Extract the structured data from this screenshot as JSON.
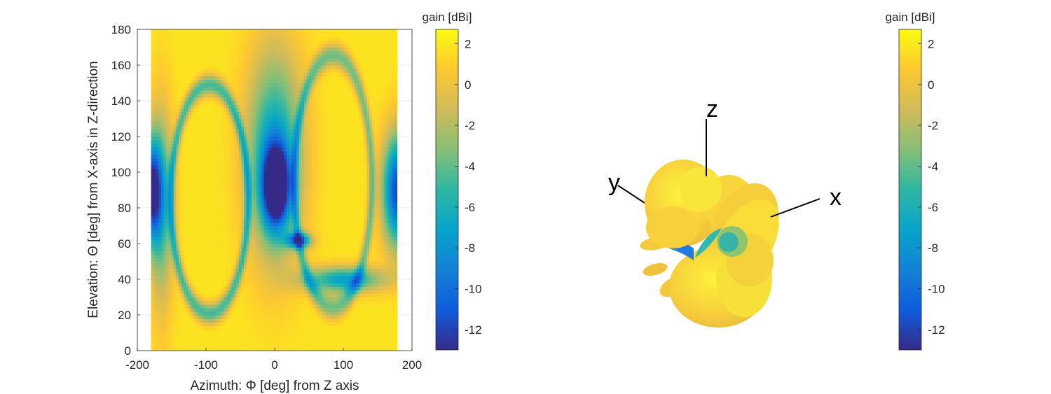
{
  "chart_data": [
    {
      "type": "heatmap",
      "xlabel": "Azimuth: Φ [deg] from Z axis",
      "ylabel": "Elevation: Θ [deg] from X-axis in Z-direction",
      "xlim": [
        -200,
        200
      ],
      "ylim": [
        0,
        180
      ],
      "xticks": [
        -200,
        -100,
        0,
        100,
        200
      ],
      "yticks": [
        0,
        20,
        40,
        60,
        80,
        100,
        120,
        140,
        160,
        180
      ],
      "grid": true,
      "colorbar": {
        "title": "gain [dBi]",
        "ticks": [
          2,
          0,
          -2,
          -4,
          -6,
          -8,
          -10,
          -12
        ],
        "range": [
          -13,
          2.7
        ],
        "colormap": "parula"
      },
      "value_range": [
        -13,
        2.7
      ],
      "description_features": {
        "deep_nulls": [
          {
            "azimuth": 0,
            "elevation": 90,
            "value": -13
          },
          {
            "azimuth": 180,
            "elevation": 90,
            "value": -13
          },
          {
            "azimuth": -180,
            "elevation": 90,
            "value": -13
          }
        ]
      }
    },
    {
      "type": "3d-radiation-pattern",
      "axes_labels": [
        "x",
        "y",
        "z"
      ],
      "colorbar": {
        "title": "gain [dBi]",
        "ticks": [
          2,
          0,
          -2,
          -4,
          -6,
          -8,
          -10,
          -12
        ],
        "range": [
          -13,
          2.7
        ],
        "colormap": "parula"
      }
    }
  ],
  "left_colorbar": {
    "title": "gain [dBi]",
    "tick_labels": [
      "2",
      "0",
      "-2",
      "-4",
      "-6",
      "-8",
      "-10",
      "-12"
    ]
  },
  "right_colorbar": {
    "title": "gain [dBi]",
    "tick_labels": [
      "2",
      "0",
      "-2",
      "-4",
      "-6",
      "-8",
      "-10",
      "-12"
    ]
  },
  "heatmap": {
    "xtick_labels": [
      "-200",
      "-100",
      "0",
      "100",
      "200"
    ],
    "ytick_labels": [
      "0",
      "20",
      "40",
      "60",
      "80",
      "100",
      "120",
      "140",
      "160",
      "180"
    ],
    "xlabel": "Azimuth: Φ [deg] from Z axis",
    "ylabel": "Elevation: Θ [deg] from X-axis in Z-direction"
  },
  "pattern3d": {
    "x_label": "x",
    "y_label": "y",
    "z_label": "z"
  },
  "colors": {
    "parula_stops": [
      "#352a87",
      "#0f5cdd",
      "#1481d6",
      "#06a4ca",
      "#2eb7a4",
      "#87bf77",
      "#d1bb59",
      "#fec832",
      "#f9fb0e"
    ]
  }
}
